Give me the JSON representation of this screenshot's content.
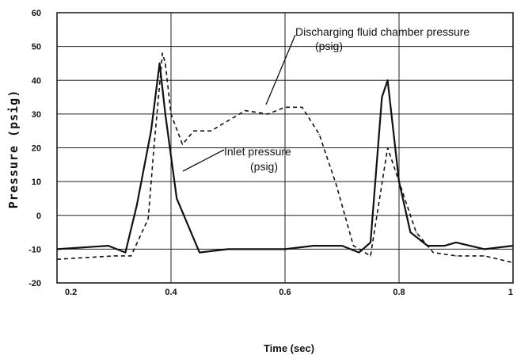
{
  "chart_data": {
    "type": "line",
    "title": "",
    "xlabel": "Time (sec)",
    "ylabel": "Pressure (psig)",
    "xlim": [
      0.2,
      1.0
    ],
    "ylim": [
      -20,
      60
    ],
    "x_ticks": [
      "0.2",
      "0.4",
      "0.6",
      "0.8",
      "1"
    ],
    "y_ticks": [
      "60",
      "50",
      "40",
      "30",
      "20",
      "10",
      "0",
      "-10",
      "-20"
    ],
    "grid": true,
    "annotations": [
      {
        "lines": [
          "Discharging fluid chamber pressure",
          "(psig)"
        ],
        "points_to": "dashed series"
      },
      {
        "lines": [
          "Inlet pressure",
          "(psig)"
        ],
        "points_to": "solid series"
      }
    ],
    "series": [
      {
        "style": "solid",
        "x": [
          0.2,
          0.29,
          0.32,
          0.34,
          0.365,
          0.38,
          0.39,
          0.41,
          0.43,
          0.45,
          0.5,
          0.55,
          0.6,
          0.65,
          0.7,
          0.73,
          0.75,
          0.77,
          0.78,
          0.8,
          0.82,
          0.85,
          0.88,
          0.9,
          0.95,
          1.0
        ],
        "y": [
          -10,
          -9,
          -11,
          3,
          25,
          45,
          30,
          5,
          -3,
          -11,
          -10,
          -10,
          -10,
          -9,
          -9,
          -11,
          -8,
          35,
          40,
          10,
          -5,
          -9,
          -9,
          -8,
          -10,
          -9
        ]
      },
      {
        "style": "dashed",
        "x": [
          0.2,
          0.3,
          0.33,
          0.36,
          0.37,
          0.385,
          0.39,
          0.4,
          0.42,
          0.44,
          0.47,
          0.5,
          0.53,
          0.57,
          0.6,
          0.63,
          0.66,
          0.69,
          0.72,
          0.75,
          0.78,
          0.8,
          0.83,
          0.86,
          0.9,
          0.95,
          1.0
        ],
        "y": [
          -13,
          -12,
          -12,
          -1,
          20,
          48,
          45,
          30,
          21,
          25,
          25,
          28,
          31,
          30,
          32,
          32,
          24,
          9,
          -9,
          -12,
          20,
          10,
          -5,
          -11,
          -12,
          -12,
          -14
        ]
      }
    ]
  }
}
